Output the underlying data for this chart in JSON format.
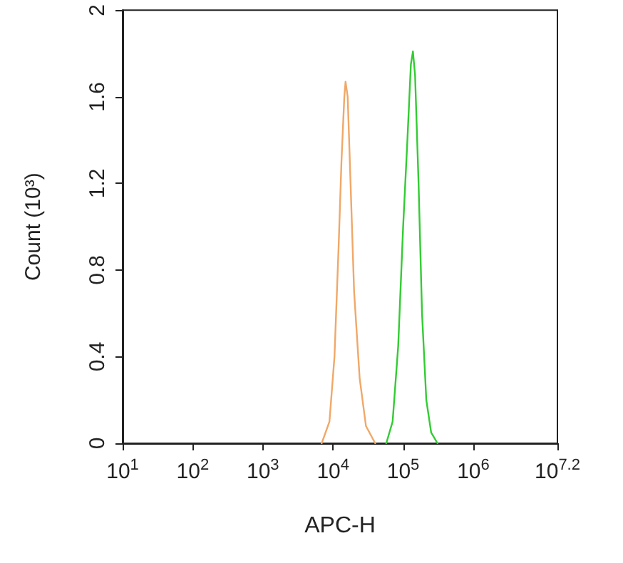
{
  "chart_data": {
    "type": "line",
    "xlabel": "APC-H",
    "ylabel": "Count (10³)",
    "log": "x",
    "xlim": [
      10,
      15848932
    ],
    "ylim": [
      0,
      2
    ],
    "xticks": [
      {
        "value": 10,
        "label": "10$^{1}$"
      },
      {
        "value": 100,
        "label": "10$^{2}$"
      },
      {
        "value": 1000,
        "label": "10$^{3}$"
      },
      {
        "value": 10000,
        "label": "10$^{4}$"
      },
      {
        "value": 100000,
        "label": "10$^{5}$"
      },
      {
        "value": 1000000,
        "label": "10$^{6}$"
      },
      {
        "value": 15848932,
        "label": "10$^{7.2}$"
      }
    ],
    "yticks": [
      0,
      0.4,
      0.8,
      1.2,
      1.6,
      2
    ],
    "grid": false,
    "marker": "none",
    "line_style": "solid",
    "series": [
      {
        "color": "#f0a868",
        "x": [
          6900,
          8900,
          10500,
          12000,
          13200,
          14500,
          15100,
          16200,
          17800,
          20000,
          24000,
          29500,
          40000
        ],
        "values": [
          0,
          0.1,
          0.4,
          0.9,
          1.3,
          1.6,
          1.67,
          1.6,
          1.2,
          0.7,
          0.3,
          0.08,
          0
        ]
      },
      {
        "color": "#33cc33",
        "x": [
          57500,
          70800,
          85100,
          100000,
          115000,
          129000,
          138000,
          148000,
          166000,
          186000,
          214000,
          251000,
          309000
        ],
        "values": [
          0,
          0.1,
          0.45,
          1.0,
          1.4,
          1.75,
          1.81,
          1.7,
          1.2,
          0.6,
          0.2,
          0.05,
          0
        ]
      }
    ]
  }
}
